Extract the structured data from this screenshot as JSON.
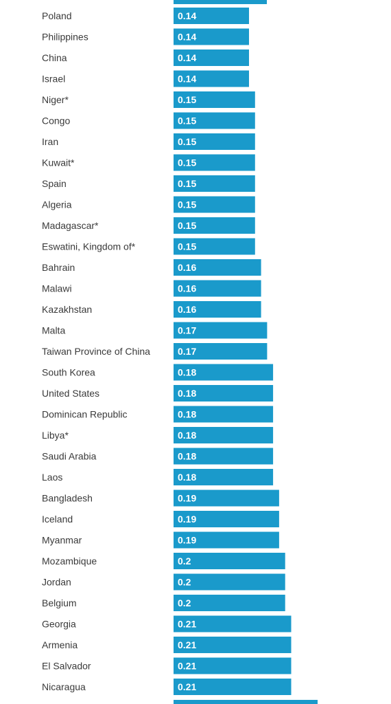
{
  "colors": {
    "bar": "#1a9acb",
    "label_text": "#3a3a3a",
    "value_text": "#ffffff"
  },
  "chart_data": {
    "type": "bar",
    "orientation": "horizontal",
    "sorted": "ascending",
    "categories": [
      "Poland",
      "Philippines",
      "China",
      "Israel",
      "Niger*",
      "Congo",
      "Iran",
      "Kuwait*",
      "Spain",
      "Algeria",
      "Madagascar*",
      "Eswatini, Kingdom of*",
      "Bahrain",
      "Malawi",
      "Kazakhstan",
      "Malta",
      "Taiwan Province of China",
      "South Korea",
      "United States",
      "Dominican Republic",
      "Libya*",
      "Saudi Arabia",
      "Laos",
      "Bangladesh",
      "Iceland",
      "Myanmar",
      "Mozambique",
      "Jordan",
      "Belgium",
      "Georgia",
      "Armenia",
      "El Salvador",
      "Nicaragua"
    ],
    "values": [
      0.14,
      0.14,
      0.14,
      0.14,
      0.15,
      0.15,
      0.15,
      0.15,
      0.15,
      0.15,
      0.15,
      0.15,
      0.16,
      0.16,
      0.16,
      0.17,
      0.17,
      0.18,
      0.18,
      0.18,
      0.18,
      0.18,
      0.18,
      0.19,
      0.19,
      0.19,
      0.2,
      0.2,
      0.2,
      0.21,
      0.21,
      0.21,
      0.21
    ],
    "labels": [
      "0.14",
      "0.14",
      "0.14",
      "0.14",
      "0.15",
      "0.15",
      "0.15",
      "0.15",
      "0.15",
      "0.15",
      "0.15",
      "0.15",
      "0.16",
      "0.16",
      "0.16",
      "0.17",
      "0.17",
      "0.18",
      "0.18",
      "0.18",
      "0.18",
      "0.18",
      "0.18",
      "0.19",
      "0.19",
      "0.19",
      "0.2",
      "0.2",
      "0.2",
      "0.21",
      "0.21",
      "0.21",
      "0.21"
    ],
    "xlim": [
      0,
      0.28
    ],
    "grid": false,
    "legend": false
  }
}
